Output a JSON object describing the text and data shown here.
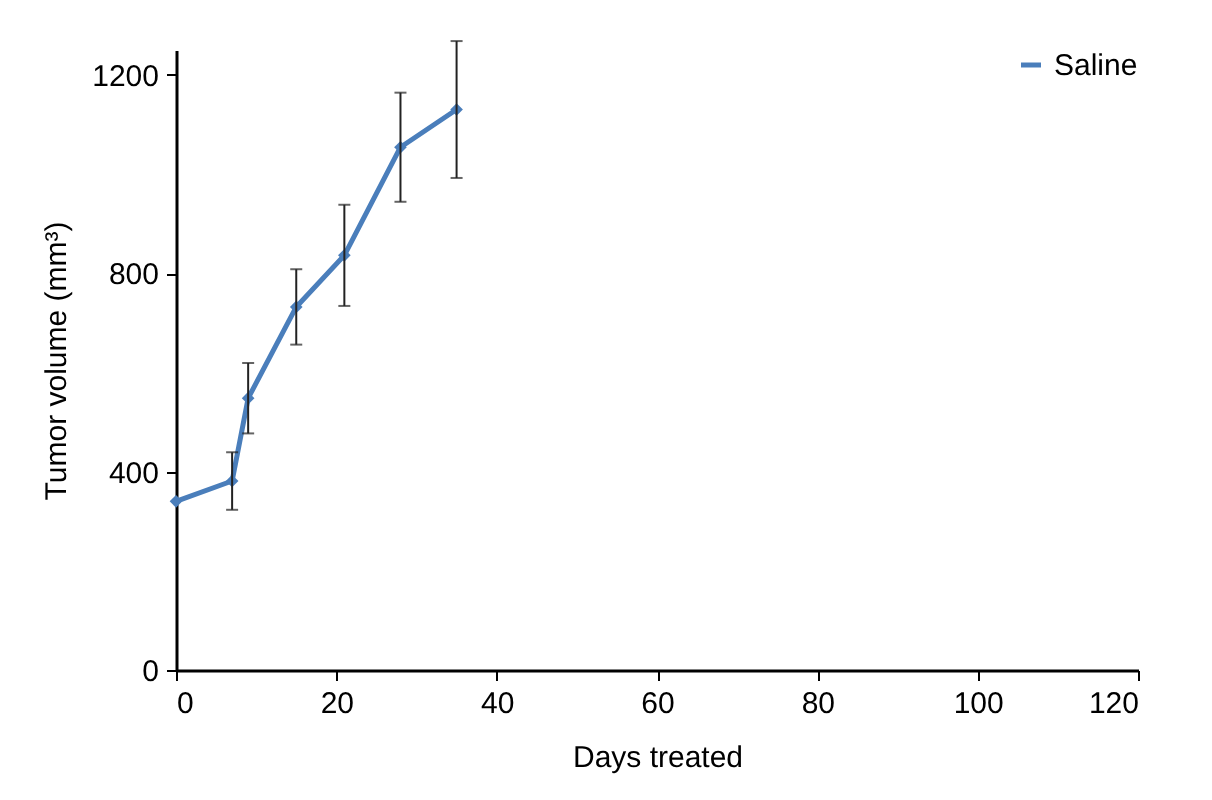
{
  "chart_data": {
    "type": "line",
    "xlabel": "Days treated",
    "ylabel": "Tumor volume (mm³)",
    "x": [
      0,
      7,
      9,
      15,
      21,
      28,
      35
    ],
    "series": [
      {
        "name": "Saline",
        "color": "#4a7ebb",
        "values": [
          340,
          381,
          548,
          732,
          836,
          1054,
          1130
        ],
        "errors": [
          null,
          58,
          71,
          76,
          102,
          110,
          138
        ]
      }
    ],
    "xlim": [
      0,
      120
    ],
    "xticks": [
      0,
      20,
      40,
      60,
      80,
      100,
      120
    ],
    "ylim": [
      0,
      1250
    ],
    "yticks": [
      0,
      400,
      800,
      1200
    ],
    "grid": false,
    "legend": "top right",
    "marker": "diamond",
    "line_style": "solid"
  }
}
